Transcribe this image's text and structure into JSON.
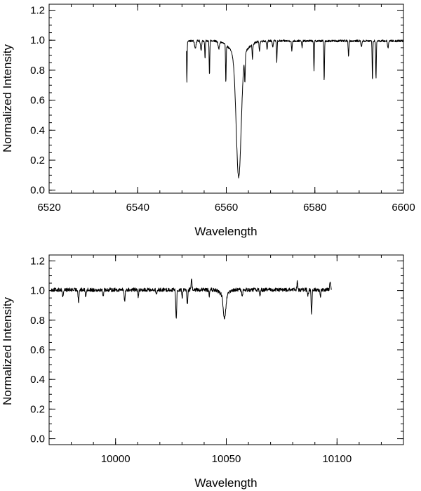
{
  "chart_data": [
    {
      "type": "line",
      "title": "",
      "xlabel": "Wavelength",
      "ylabel": "Normalized Intensity",
      "xlim": [
        6520,
        6600
      ],
      "ylim": [
        -0.02,
        1.24
      ],
      "x_ticks": [
        6520,
        6540,
        6560,
        6580,
        6600
      ],
      "x_tick_labels": [
        "6520",
        "6540",
        "6560",
        "6580",
        "6600"
      ],
      "x_minor_step": 5,
      "y_ticks": [
        0.0,
        0.2,
        0.4,
        0.6,
        0.8,
        1.0,
        1.2
      ],
      "y_tick_labels": [
        "0.0",
        "0.2",
        "0.4",
        "0.6",
        "0.8",
        "1.0",
        "1.2"
      ],
      "y_minor_step": 0.05,
      "grid": false,
      "series": [
        {
          "x_range": [
            6551.0,
            6600.0
          ],
          "continuum": 0.995,
          "noise": 0.007,
          "features": [
            {
              "x": 6551.1,
              "depth": 0.28,
              "width": 0.06
            },
            {
              "x": 6553.0,
              "depth": 0.05,
              "width": 0.15
            },
            {
              "x": 6554.3,
              "depth": 0.06,
              "width": 0.12
            },
            {
              "x": 6555.2,
              "depth": 0.12,
              "width": 0.07
            },
            {
              "x": 6556.2,
              "depth": 0.23,
              "width": 0.07
            },
            {
              "x": 6558.3,
              "depth": 0.05,
              "width": 0.15
            },
            {
              "x": 6559.9,
              "depth": 0.26,
              "width": 0.07
            },
            {
              "x": 6562.8,
              "depth": 0.81,
              "width": 0.55
            },
            {
              "x": 6562.8,
              "depth": 0.1,
              "width": 1.8
            },
            {
              "x": 6564.2,
              "depth": 0.18,
              "width": 0.08
            },
            {
              "x": 6565.9,
              "depth": 0.1,
              "width": 0.08
            },
            {
              "x": 6567.5,
              "depth": 0.06,
              "width": 0.1
            },
            {
              "x": 6569.2,
              "depth": 0.05,
              "width": 0.1
            },
            {
              "x": 6570.5,
              "depth": 0.04,
              "width": 0.1
            },
            {
              "x": 6571.4,
              "depth": 0.14,
              "width": 0.07
            },
            {
              "x": 6574.8,
              "depth": 0.07,
              "width": 0.08
            },
            {
              "x": 6577.1,
              "depth": 0.04,
              "width": 0.1
            },
            {
              "x": 6579.8,
              "depth": 0.2,
              "width": 0.07
            },
            {
              "x": 6582.1,
              "depth": 0.27,
              "width": 0.07
            },
            {
              "x": 6587.6,
              "depth": 0.1,
              "width": 0.08
            },
            {
              "x": 6590.5,
              "depth": 0.04,
              "width": 0.1
            },
            {
              "x": 6593.0,
              "depth": 0.27,
              "width": 0.07
            },
            {
              "x": 6593.8,
              "depth": 0.26,
              "width": 0.07
            },
            {
              "x": 6596.5,
              "depth": 0.05,
              "width": 0.1
            }
          ]
        }
      ]
    },
    {
      "type": "line",
      "title": "",
      "xlabel": "Wavelength",
      "ylabel": "Normalized Intensity",
      "xlim": [
        9970,
        10130
      ],
      "ylim": [
        -0.04,
        1.24
      ],
      "x_ticks": [
        10000,
        10050,
        10100
      ],
      "x_tick_labels": [
        "10000",
        "10050",
        "10100"
      ],
      "x_minor_step": 10,
      "y_ticks": [
        0.0,
        0.2,
        0.4,
        0.6,
        0.8,
        1.0,
        1.2
      ],
      "y_tick_labels": [
        "0.0",
        "0.2",
        "0.4",
        "0.6",
        "0.8",
        "1.0",
        "1.2"
      ],
      "y_minor_step": 0.05,
      "grid": false,
      "series": [
        {
          "x_range": [
            9971.0,
            10097.5
          ],
          "continuum": 1.005,
          "noise": 0.013,
          "features": [
            {
              "x": 9976.2,
              "depth": 0.05,
              "width": 0.2
            },
            {
              "x": 9983.3,
              "depth": 0.08,
              "width": 0.2
            },
            {
              "x": 9986.5,
              "depth": 0.04,
              "width": 0.2
            },
            {
              "x": 9994.4,
              "depth": 0.04,
              "width": 0.2
            },
            {
              "x": 10004.1,
              "depth": 0.08,
              "width": 0.2
            },
            {
              "x": 10010.2,
              "depth": 0.05,
              "width": 0.2
            },
            {
              "x": 10018.5,
              "depth": 0.03,
              "width": 0.25
            },
            {
              "x": 10027.4,
              "depth": 0.2,
              "width": 0.2
            },
            {
              "x": 10030.1,
              "depth": 0.05,
              "width": 0.2
            },
            {
              "x": 10032.4,
              "depth": 0.1,
              "width": 0.2
            },
            {
              "x": 10034.3,
              "depth": -0.08,
              "width": 0.2
            },
            {
              "x": 10042.3,
              "depth": 0.04,
              "width": 0.2
            },
            {
              "x": 10049.2,
              "depth": 0.16,
              "width": 0.55
            },
            {
              "x": 10049.2,
              "depth": 0.04,
              "width": 1.8
            },
            {
              "x": 10057.2,
              "depth": 0.05,
              "width": 0.2
            },
            {
              "x": 10065.2,
              "depth": 0.04,
              "width": 0.2
            },
            {
              "x": 10082.1,
              "depth": -0.06,
              "width": 0.2
            },
            {
              "x": 10086.9,
              "depth": 0.04,
              "width": 0.2
            },
            {
              "x": 10088.5,
              "depth": 0.16,
              "width": 0.2
            },
            {
              "x": 10092.5,
              "depth": 0.05,
              "width": 0.2
            },
            {
              "x": 10096.9,
              "depth": -0.06,
              "width": 0.2
            }
          ]
        }
      ]
    }
  ]
}
